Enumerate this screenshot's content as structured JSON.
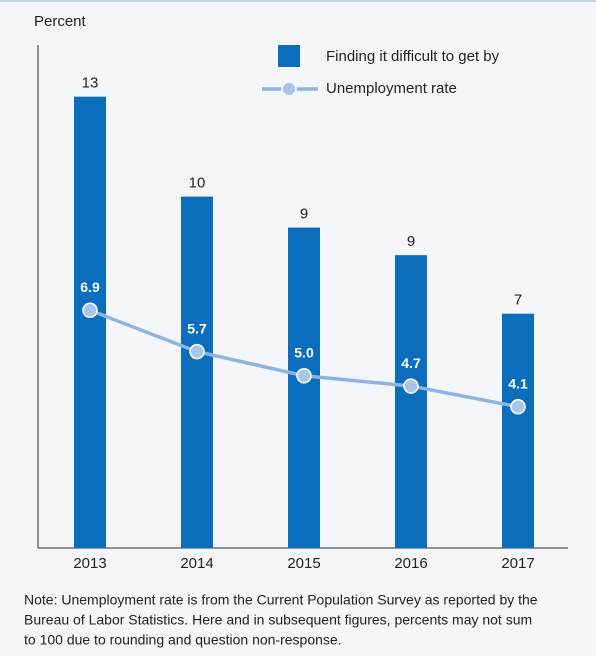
{
  "chart_data": {
    "type": "bar_line",
    "y_label": "Percent",
    "categories": [
      "2013",
      "2014",
      "2015",
      "2016",
      "2017"
    ],
    "ylim": [
      0,
      14.6
    ],
    "legend": "top-right",
    "series": [
      {
        "name": "Finding it difficult to get by",
        "type": "bar",
        "color": "#0a6ebd",
        "values": [
          13.1,
          10.2,
          9.3,
          8.5,
          6.8
        ],
        "value_labels": [
          "13",
          "10",
          "9",
          "9",
          "7"
        ]
      },
      {
        "name": "Unemployment rate",
        "type": "line",
        "color": "#8fb4e3",
        "values": [
          6.9,
          5.7,
          5.0,
          4.7,
          4.1
        ],
        "value_labels": [
          "6.9",
          "5.7",
          "5.0",
          "4.7",
          "4.1"
        ]
      }
    ],
    "note": [
      "Note: Unemployment rate is from the Current Population Survey as reported by the",
      "Bureau of Labor Statistics. Here and in subsequent figures, percents may not sum",
      "to 100 due to rounding and question non-response."
    ]
  }
}
